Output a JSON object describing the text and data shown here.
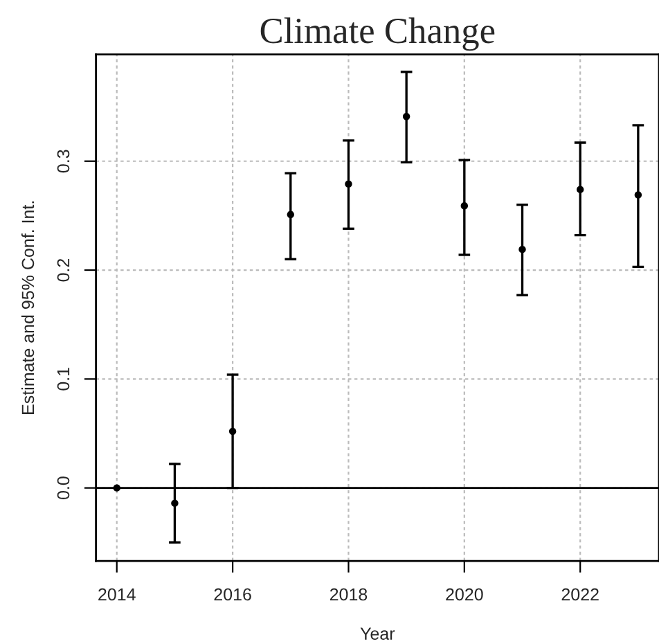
{
  "chart_data": {
    "type": "scatter",
    "title": "Climate Change",
    "xlabel": "Year",
    "ylabel": "Estimate and 95% Conf. Int.",
    "x": [
      2014,
      2015,
      2016,
      2017,
      2018,
      2019,
      2020,
      2021,
      2022,
      2023
    ],
    "values": [
      0,
      -0.014,
      0.052,
      0.251,
      0.279,
      0.341,
      0.259,
      0.219,
      0.274,
      0.269
    ],
    "errors": [
      null,
      [
        -0.05,
        0.022
      ],
      [
        0,
        0.104
      ],
      [
        0.21,
        0.289
      ],
      [
        0.238,
        0.319
      ],
      [
        0.299,
        0.382
      ],
      [
        0.214,
        0.301
      ],
      [
        0.177,
        0.26
      ],
      [
        0.232,
        0.317
      ],
      [
        0.203,
        0.333
      ]
    ],
    "color": "#000000",
    "marker": "circle",
    "xlim": [
      2013.64,
      2023.36
    ],
    "ylim": [
      -0.067,
      0.398
    ],
    "xticks": [
      2014,
      2016,
      2018,
      2020,
      2022
    ],
    "yticks": [
      {
        "value": 0,
        "label": "0.0"
      },
      {
        "value": 0.1,
        "label": "0.1"
      },
      {
        "value": 0.2,
        "label": "0.2"
      },
      {
        "value": 0.3,
        "label": "0.3"
      }
    ],
    "ref_lines": [
      {
        "axis": "y",
        "value": 0,
        "color": "#000000",
        "line_style": "solid"
      }
    ],
    "grid": true
  }
}
